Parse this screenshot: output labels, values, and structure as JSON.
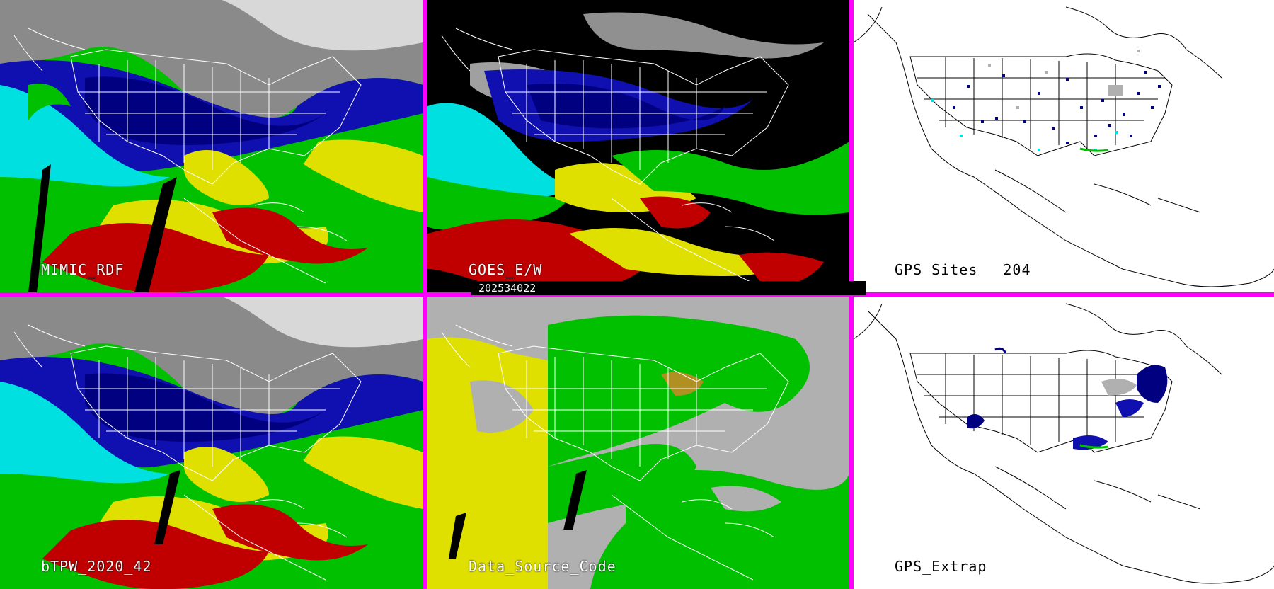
{
  "panels": [
    {
      "id": "mimic-rdf",
      "label": "MIMIC_RDF",
      "style": "tpw"
    },
    {
      "id": "goes-ew",
      "label": "GOES_E/W",
      "style": "goes"
    },
    {
      "id": "gps-sites",
      "label": "GPS Sites",
      "count": "204",
      "style": "gps"
    },
    {
      "id": "btpw-2020-42",
      "label": "bTPW_2020_42",
      "style": "tpw"
    },
    {
      "id": "data-source-code",
      "label": "Data_Source_Code",
      "style": "dsc"
    },
    {
      "id": "gps-extrap",
      "label": "GPS_Extrap",
      "style": "gpsx"
    }
  ],
  "timestamp": "202534022",
  "colors": {
    "frame": "#ff00ff",
    "dry": "#2020c0",
    "navy": "#00007c",
    "cyan": "#00e0e0",
    "green": "#00c000",
    "yellow": "#e0e000",
    "red": "#c00000",
    "gray": "#b0b0b0"
  }
}
